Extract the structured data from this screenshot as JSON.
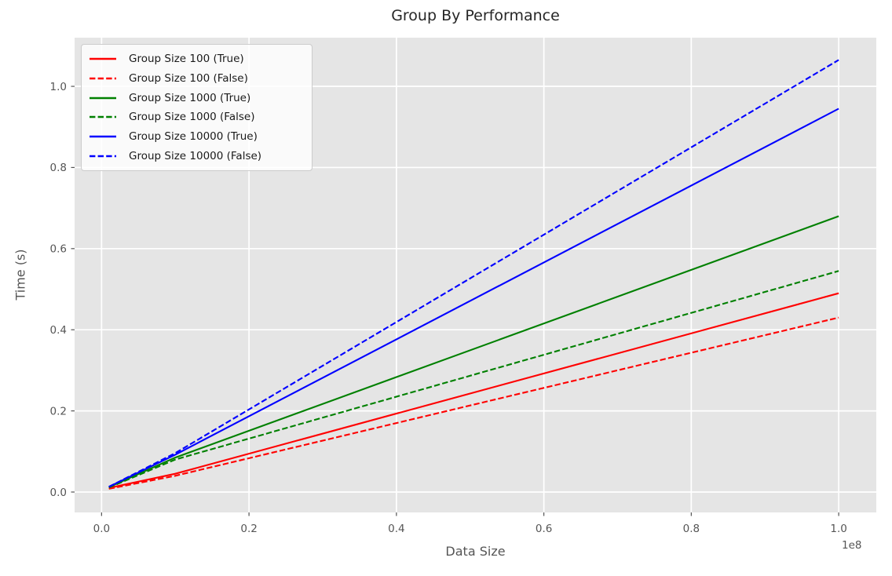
{
  "chart_data": {
    "type": "line",
    "title": "Group By Performance",
    "xlabel": "Data Size",
    "ylabel": "Time (s)",
    "x_axis_offset_text": "1e8",
    "x": [
      1000000,
      10000000,
      100000000
    ],
    "series": [
      {
        "name": "Group Size 100 (True)",
        "color": "#ff0000",
        "linestyle": "solid",
        "values": [
          0.01,
          0.045,
          0.49
        ]
      },
      {
        "name": "Group Size 100 (False)",
        "color": "#ff0000",
        "linestyle": "dashed",
        "values": [
          0.008,
          0.04,
          0.43
        ]
      },
      {
        "name": "Group Size 1000 (True)",
        "color": "#008000",
        "linestyle": "solid",
        "values": [
          0.012,
          0.085,
          0.68
        ]
      },
      {
        "name": "Group Size 1000 (False)",
        "color": "#008000",
        "linestyle": "dashed",
        "values": [
          0.011,
          0.08,
          0.545
        ]
      },
      {
        "name": "Group Size 10000 (True)",
        "color": "#0000ff",
        "linestyle": "solid",
        "values": [
          0.013,
          0.092,
          0.945
        ]
      },
      {
        "name": "Group Size 10000 (False)",
        "color": "#0000ff",
        "linestyle": "dashed",
        "values": [
          0.013,
          0.096,
          1.065
        ]
      }
    ],
    "xlim": [
      -3660000,
      105100000
    ],
    "ylim": [
      -0.0503,
      1.12
    ],
    "x_ticks": {
      "values": [
        0,
        20000000,
        40000000,
        60000000,
        80000000,
        100000000
      ],
      "labels": [
        "0.0",
        "0.2",
        "0.4",
        "0.6",
        "0.8",
        "1.0"
      ]
    },
    "y_ticks": {
      "values": [
        0.0,
        0.2,
        0.4,
        0.6,
        0.8,
        1.0
      ],
      "labels": [
        "0.0",
        "0.2",
        "0.4",
        "0.6",
        "0.8",
        "1.0"
      ]
    },
    "grid": true,
    "legend_position": "upper-left",
    "style": {
      "plot_bg": "#e5e5e5",
      "grid_color": "#ffffff",
      "tick_color": "#555555",
      "axis_label_color": "#555555",
      "title_color": "#262626",
      "legend_bg": "rgba(255,255,255,0.8)",
      "legend_border": "#cccccc",
      "legend_text_color": "#1a1a1a"
    }
  }
}
